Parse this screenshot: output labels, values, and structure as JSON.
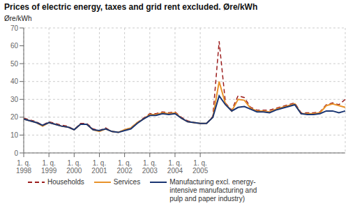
{
  "chart_data": {
    "type": "line",
    "title": "Prices of electric energy, taxes and grid rent excluded. Øre/kWh",
    "y_label": "Øre/kWh",
    "categories": [
      "1. q.\n1998",
      null,
      null,
      null,
      "1. q.\n1999",
      null,
      null,
      null,
      "1. q.\n2000",
      null,
      null,
      null,
      "1. q.\n2001",
      null,
      null,
      null,
      "1. q.\n2002",
      null,
      null,
      null,
      "1. q.\n2003",
      null,
      null,
      null,
      "1. q.\n2004",
      null,
      null,
      null,
      "1. q.\n2005",
      null,
      null,
      null,
      null,
      null,
      null,
      null,
      null,
      null,
      null,
      null,
      null,
      null,
      null,
      null,
      null,
      null,
      null,
      null,
      null,
      null,
      null,
      null
    ],
    "series": [
      {
        "name": "Households",
        "color": "#9b1c1c",
        "line_style": "dashed",
        "values": [
          19.5,
          18.5,
          17.5,
          15.5,
          17.5,
          16.5,
          15.5,
          15.0,
          13.0,
          16.5,
          16.5,
          13.5,
          12.5,
          14.0,
          12.0,
          11.5,
          13.0,
          14.0,
          17.0,
          19.5,
          22.0,
          22.0,
          23.0,
          22.5,
          23.0,
          20.0,
          18.0,
          17.0,
          16.5,
          16.5,
          20.5,
          62.5,
          28.0,
          24.0,
          32.0,
          31.0,
          25.5,
          24.0,
          24.0,
          24.0,
          25.0,
          26.0,
          27.0,
          28.0,
          22.5,
          22.5,
          22.5,
          23.0,
          27.0,
          28.0,
          27.0,
          30.0
        ]
      },
      {
        "name": "Services",
        "color": "#e8922a",
        "line_style": "solid",
        "values": [
          19.0,
          18.0,
          17.0,
          15.0,
          17.0,
          16.0,
          15.0,
          14.5,
          13.0,
          16.0,
          16.0,
          13.0,
          12.0,
          13.5,
          12.0,
          11.5,
          13.0,
          14.0,
          17.0,
          19.0,
          21.5,
          21.5,
          22.5,
          22.0,
          22.5,
          19.5,
          17.5,
          17.0,
          16.5,
          16.5,
          20.0,
          40.0,
          27.5,
          23.5,
          30.0,
          29.5,
          25.0,
          23.5,
          23.5,
          23.0,
          24.5,
          25.5,
          26.5,
          27.5,
          22.0,
          22.0,
          22.0,
          22.5,
          26.5,
          27.5,
          26.5,
          25.5
        ]
      },
      {
        "name": "Manufacturing excl. energy-\nintensive manufacturing and\npulp and paper industry)",
        "color": "#1a3572",
        "line_style": "solid",
        "values": [
          19.0,
          18.0,
          17.0,
          15.5,
          17.0,
          16.0,
          15.0,
          14.5,
          13.0,
          16.0,
          16.0,
          13.0,
          12.5,
          13.5,
          12.0,
          11.5,
          12.5,
          13.5,
          16.5,
          19.0,
          21.0,
          21.0,
          22.0,
          21.5,
          22.0,
          19.5,
          17.5,
          17.0,
          16.5,
          16.5,
          20.0,
          32.0,
          27.0,
          23.5,
          25.5,
          26.0,
          24.5,
          23.0,
          23.0,
          22.5,
          24.0,
          25.0,
          26.0,
          27.0,
          22.0,
          21.5,
          21.5,
          22.0,
          23.5,
          23.5,
          22.5,
          23.5
        ]
      }
    ],
    "ylim": [
      0,
      70
    ],
    "yticks": [
      0,
      10,
      20,
      30,
      40,
      50,
      60,
      70
    ],
    "grid": true,
    "legend": "bottom"
  }
}
